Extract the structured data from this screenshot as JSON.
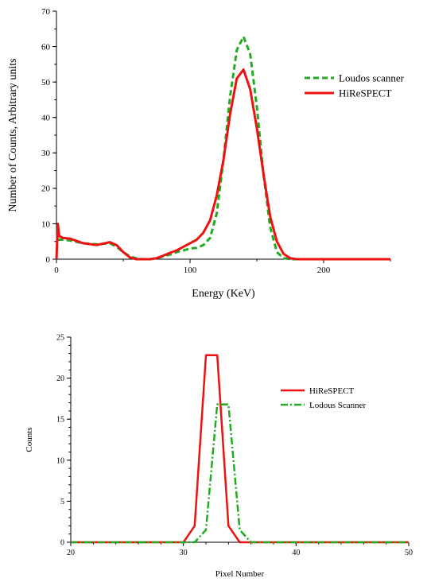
{
  "chart_data": [
    {
      "type": "line",
      "xlabel": "Energy (KeV)",
      "ylabel": "Number of Counts, Arbitrary units",
      "xlim": [
        0,
        250
      ],
      "ylim": [
        0,
        70
      ],
      "xticks": [
        "0",
        "100",
        "200"
      ],
      "yticks": [
        "0",
        "10",
        "20",
        "30",
        "40",
        "50",
        "60",
        "70"
      ],
      "grid": false,
      "legend_position": "right",
      "series": [
        {
          "name": "Loudos scanner",
          "color": "#22aa22",
          "style": "dashed",
          "x": [
            1,
            5,
            10,
            20,
            30,
            40,
            45,
            50,
            55,
            60,
            65,
            70,
            75,
            80,
            85,
            90,
            95,
            100,
            105,
            110,
            115,
            120,
            125,
            130,
            135,
            140,
            145,
            150,
            155,
            160,
            165,
            170,
            175,
            180,
            200,
            250
          ],
          "y": [
            5.5,
            5.5,
            5.3,
            4.5,
            4.2,
            4.5,
            3.5,
            2.0,
            0.8,
            0.2,
            0.0,
            0.0,
            0.3,
            0.8,
            1.3,
            2.0,
            2.5,
            3.0,
            3.2,
            4.0,
            6.0,
            13.0,
            28.0,
            46.0,
            59.0,
            62.8,
            58.0,
            43.0,
            24.0,
            9.0,
            2.0,
            0.3,
            0.0,
            0.0,
            0.0,
            0.0
          ]
        },
        {
          "name": "HiReSPECT",
          "color": "#ee1111",
          "style": "solid",
          "x": [
            0,
            1,
            2,
            5,
            10,
            20,
            30,
            40,
            45,
            50,
            55,
            60,
            65,
            70,
            75,
            80,
            85,
            90,
            95,
            100,
            105,
            110,
            115,
            120,
            125,
            130,
            135,
            140,
            145,
            150,
            155,
            160,
            165,
            170,
            175,
            180,
            200,
            250
          ],
          "y": [
            0,
            10.0,
            6.5,
            6.0,
            5.8,
            4.5,
            4.0,
            4.8,
            4.0,
            2.0,
            0.5,
            0.0,
            0.0,
            0.0,
            0.3,
            1.0,
            1.8,
            2.5,
            3.5,
            4.5,
            5.5,
            7.5,
            11.0,
            18.0,
            28.0,
            41.0,
            51.0,
            53.5,
            48.0,
            37.0,
            24.0,
            12.0,
            5.0,
            1.5,
            0.3,
            0.0,
            0.0,
            0.0
          ]
        }
      ]
    },
    {
      "type": "line",
      "xlabel": "Pixel Number",
      "ylabel": "Counts",
      "xlim": [
        20,
        50
      ],
      "ylim": [
        0,
        25
      ],
      "xticks": [
        "20",
        "30",
        "40",
        "50"
      ],
      "yticks": [
        "0",
        "5",
        "10",
        "15",
        "20",
        "25"
      ],
      "grid": false,
      "legend_position": "right",
      "series": [
        {
          "name": "HiReSPECT",
          "color": "#ee1111",
          "style": "solid",
          "x": [
            20,
            30,
            31,
            32,
            33,
            34,
            35,
            50
          ],
          "y": [
            0,
            0,
            2.0,
            22.8,
            22.8,
            2.0,
            0,
            0
          ]
        },
        {
          "name": "Lodous Scanner",
          "color": "#22aa22",
          "style": "dashdot",
          "x": [
            20,
            31,
            32,
            33,
            34,
            35,
            36,
            50
          ],
          "y": [
            0,
            0,
            1.5,
            16.8,
            16.8,
            1.5,
            0,
            0
          ]
        }
      ]
    }
  ]
}
